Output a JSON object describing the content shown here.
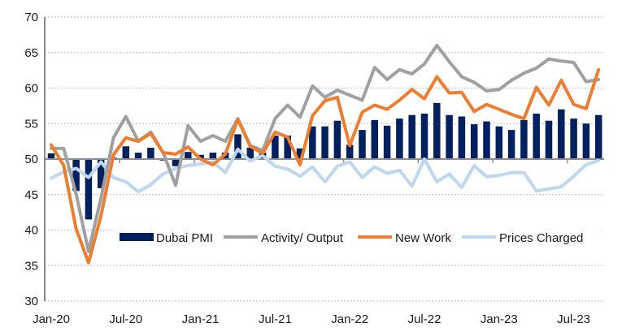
{
  "chart_data": {
    "type": "bar",
    "title": "",
    "xlabel": "",
    "ylabel": "",
    "ylim": [
      30,
      70
    ],
    "y_ticks": [
      "30",
      "35",
      "40",
      "45",
      "50",
      "55",
      "60",
      "65",
      "70"
    ],
    "bar_baseline": 50,
    "grid": true,
    "legend_position": "bottom-center-inside",
    "x": [
      "Jan-20",
      "Feb-20",
      "Mar-20",
      "Apr-20",
      "May-20",
      "Jun-20",
      "Jul-20",
      "Aug-20",
      "Sep-20",
      "Oct-20",
      "Nov-20",
      "Dec-20",
      "Jan-21",
      "Feb-21",
      "Mar-21",
      "Apr-21",
      "May-21",
      "Jun-21",
      "Jul-21",
      "Aug-21",
      "Sep-21",
      "Oct-21",
      "Nov-21",
      "Dec-21",
      "Jan-22",
      "Feb-22",
      "Mar-22",
      "Apr-22",
      "May-22",
      "Jun-22",
      "Jul-22",
      "Aug-22",
      "Sep-22",
      "Oct-22",
      "Nov-22",
      "Dec-22",
      "Jan-23",
      "Feb-23",
      "Mar-23",
      "Apr-23",
      "May-23",
      "Jun-23",
      "Jul-23",
      "Aug-23",
      "Sep-23"
    ],
    "x_tick_labels": [
      "Jan-20",
      "Jul-20",
      "Jan-21",
      "Jul-21",
      "Jan-22",
      "Jul-22",
      "Jan-23",
      "Jul-23"
    ],
    "series": [
      {
        "name": "Dubai PMI",
        "kind": "bar",
        "color": "#002060",
        "values": [
          50.8,
          50.1,
          45.5,
          41.5,
          45.9,
          50.2,
          51.8,
          50.9,
          51.6,
          49.8,
          49.0,
          51.0,
          50.6,
          50.9,
          50.9,
          53.5,
          51.6,
          50.9,
          53.3,
          53.3,
          51.5,
          54.6,
          54.6,
          55.4,
          52.0,
          54.1,
          55.5,
          54.7,
          55.7,
          56.2,
          56.4,
          57.9,
          56.2,
          56.0,
          54.9,
          55.3,
          54.6,
          54.1,
          55.5,
          56.4,
          55.4,
          57.0,
          55.7,
          55.0,
          56.2
        ]
      },
      {
        "name": "Activity/ Output",
        "kind": "line",
        "color": "#a0a0a0",
        "values": [
          51.5,
          51.5,
          45.1,
          37.0,
          44.5,
          53.0,
          56.0,
          52.5,
          53.8,
          50.9,
          46.3,
          54.7,
          52.5,
          53.3,
          52.5,
          55.7,
          51.9,
          51.2,
          55.7,
          57.6,
          55.9,
          60.3,
          58.7,
          59.7,
          59.0,
          58.3,
          62.9,
          61.2,
          62.6,
          62.0,
          63.4,
          66.0,
          63.7,
          61.6,
          60.8,
          59.6,
          59.8,
          61.1,
          62.1,
          62.8,
          64.1,
          63.8,
          63.6,
          60.9,
          61.2
        ]
      },
      {
        "name": "New Work",
        "kind": "line",
        "color": "#ed7d31",
        "values": [
          52.0,
          49.1,
          40.2,
          35.4,
          42.0,
          50.6,
          53.0,
          52.5,
          53.6,
          50.9,
          50.7,
          51.7,
          50.0,
          49.2,
          50.7,
          55.6,
          51.8,
          50.8,
          53.8,
          53.1,
          49.2,
          56.1,
          58.2,
          58.7,
          51.9,
          56.6,
          57.6,
          57.0,
          58.3,
          59.8,
          58.5,
          61.6,
          59.3,
          59.4,
          56.7,
          57.7,
          57.0,
          56.3,
          55.7,
          60.1,
          57.6,
          61.1,
          57.7,
          57.1,
          62.6
        ]
      },
      {
        "name": "Prices Charged",
        "kind": "line",
        "color": "#bdd7ee",
        "values": [
          47.3,
          48.2,
          48.7,
          47.4,
          49.6,
          47.4,
          46.8,
          45.4,
          46.4,
          47.9,
          48.7,
          49.1,
          49.3,
          49.6,
          48.1,
          51.4,
          49.7,
          50.5,
          49.0,
          48.6,
          47.6,
          48.9,
          46.8,
          49.0,
          49.6,
          47.4,
          48.9,
          48.0,
          48.4,
          46.2,
          50.0,
          46.8,
          47.9,
          46.0,
          49.1,
          47.5,
          47.7,
          48.1,
          48.1,
          45.5,
          45.8,
          46.1,
          47.6,
          49.2,
          49.8
        ]
      }
    ]
  }
}
